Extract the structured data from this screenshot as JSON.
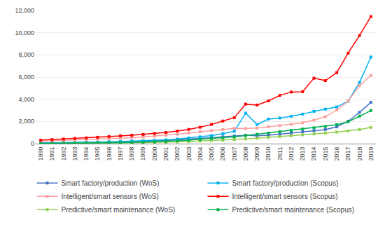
{
  "chart_data": {
    "type": "line",
    "x": [
      1990,
      1991,
      1992,
      1993,
      1994,
      1995,
      1996,
      1997,
      1998,
      1999,
      2000,
      2001,
      2002,
      2003,
      2004,
      2005,
      2006,
      2007,
      2008,
      2009,
      2010,
      2011,
      2012,
      2013,
      2014,
      2015,
      2016,
      2017,
      2018,
      2019
    ],
    "series": [
      {
        "name": "Smart factory/production (WoS)",
        "color": "#4472c4",
        "values": [
          50,
          60,
          70,
          85,
          100,
          120,
          145,
          165,
          190,
          215,
          250,
          290,
          340,
          395,
          455,
          530,
          610,
          695,
          760,
          710,
          760,
          860,
          960,
          1065,
          1165,
          1270,
          1510,
          2020,
          2820,
          3720
        ]
      },
      {
        "name": "Smart factory/production (Scopus)",
        "color": "#00b0f0",
        "values": [
          60,
          70,
          85,
          95,
          115,
          135,
          165,
          195,
          225,
          255,
          295,
          345,
          415,
          505,
          610,
          730,
          895,
          1110,
          2750,
          1720,
          2210,
          2310,
          2460,
          2660,
          2910,
          3110,
          3310,
          3820,
          5520,
          7800
        ]
      },
      {
        "name": "Intelligent/smart sensors (WoS)",
        "color": "#ffa0a0",
        "values": [
          220,
          255,
          285,
          325,
          365,
          405,
          445,
          490,
          540,
          600,
          670,
          755,
          855,
          970,
          1075,
          1175,
          1280,
          1375,
          1365,
          1400,
          1520,
          1625,
          1730,
          1880,
          2120,
          2430,
          3030,
          3830,
          5230,
          6150
        ]
      },
      {
        "name": "Intelligent/smart sensors (Scopus)",
        "color": "#ff0000",
        "values": [
          310,
          360,
          415,
          465,
          515,
          575,
          640,
          700,
          760,
          830,
          910,
          1005,
          1130,
          1280,
          1480,
          1730,
          2040,
          2340,
          3560,
          3480,
          3850,
          4350,
          4650,
          4680,
          5900,
          5680,
          6400,
          8150,
          9750,
          11450
        ]
      },
      {
        "name": "Predictive/smart maintenance (WoS)",
        "color": "#92d050",
        "values": [
          10,
          14,
          19,
          24,
          29,
          38,
          48,
          58,
          72,
          88,
          108,
          128,
          158,
          196,
          236,
          276,
          316,
          365,
          425,
          485,
          555,
          632,
          715,
          793,
          872,
          952,
          1040,
          1140,
          1270,
          1465
        ]
      },
      {
        "name": "Predictive/smart maintenance (Scopus)",
        "color": "#00b050",
        "values": [
          18,
          23,
          28,
          38,
          48,
          62,
          77,
          97,
          118,
          142,
          170,
          206,
          255,
          315,
          382,
          452,
          522,
          612,
          720,
          840,
          950,
          1070,
          1190,
          1310,
          1430,
          1548,
          1710,
          1970,
          2480,
          2980
        ]
      }
    ],
    "xlim": [
      1989.5,
      2019.5
    ],
    "xticks": [
      1990,
      1991,
      1992,
      1993,
      1994,
      1995,
      1996,
      1997,
      1998,
      1999,
      2000,
      2001,
      2002,
      2003,
      2004,
      2005,
      2006,
      2007,
      2008,
      2009,
      2010,
      2011,
      2012,
      2013,
      2014,
      2015,
      2016,
      2017,
      2018,
      2019
    ],
    "ylim": [
      0,
      12000
    ],
    "yticks": [
      0,
      {
        "value": 2000,
        "label": "2,000"
      },
      {
        "value": 4000,
        "label": "4,000"
      },
      {
        "value": 6000,
        "label": "6,000"
      },
      {
        "value": 8000,
        "label": "8,000"
      },
      {
        "value": 10000,
        "label": "10,000"
      },
      {
        "value": 12000,
        "label": "12,000"
      }
    ],
    "grid": "y",
    "legend": "bottom",
    "marker": "square",
    "line_style": "solid"
  }
}
